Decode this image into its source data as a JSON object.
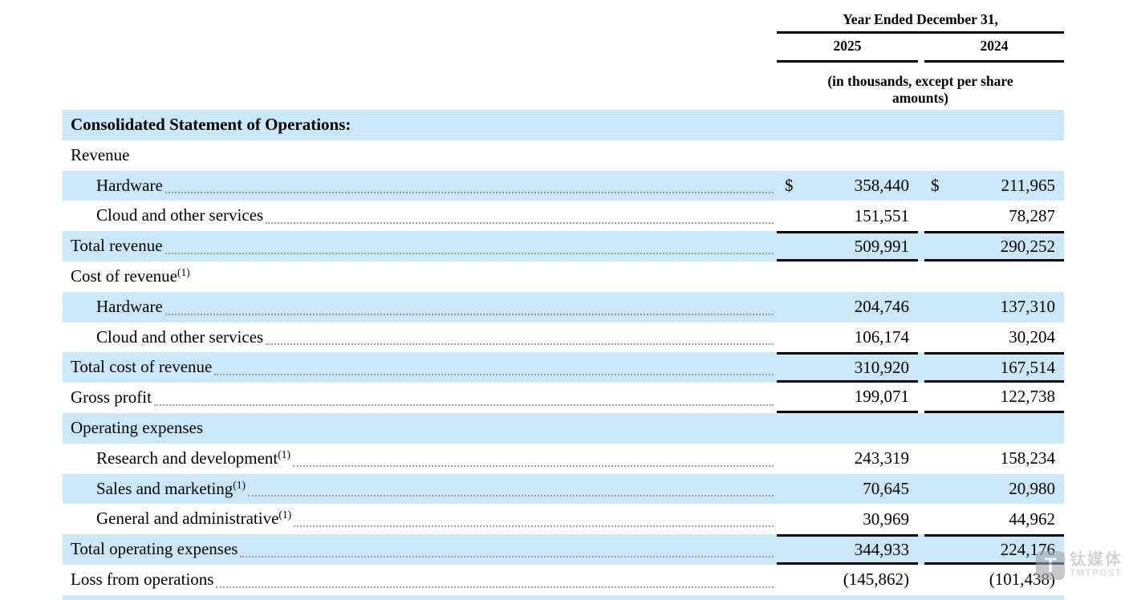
{
  "header": {
    "period_label": "Year Ended December 31,",
    "col_2025": "2025",
    "col_2024": "2024",
    "units_note": "(in thousands, except per share amounts)"
  },
  "table": {
    "rows": [
      {
        "label": "Consolidated Statement of Operations:"
      },
      {
        "label": "Revenue"
      },
      {
        "label": "Hardware",
        "d1": "$",
        "v1": "358,440",
        "d2": "$",
        "v2": "211,965"
      },
      {
        "label": "Cloud and other services",
        "v1": "151,551",
        "v2": "78,287"
      },
      {
        "label": "Total revenue",
        "v1": "509,991",
        "v2": "290,252"
      },
      {
        "label": "Cost of revenue",
        "sup": "(1)"
      },
      {
        "label": "Hardware",
        "v1": "204,746",
        "v2": "137,310"
      },
      {
        "label": "Cloud and other services",
        "v1": "106,174",
        "v2": "30,204"
      },
      {
        "label": "Total cost of revenue",
        "v1": "310,920",
        "v2": "167,514"
      },
      {
        "label": "Gross profit",
        "v1": "199,071",
        "v2": "122,738"
      },
      {
        "label": "Operating expenses"
      },
      {
        "label": "Research and development",
        "sup": "(1)",
        "v1": "243,319",
        "v2": "158,234"
      },
      {
        "label": "Sales and marketing",
        "sup": "(1)",
        "v1": "70,645",
        "v2": "20,980"
      },
      {
        "label": "General and administrative",
        "sup": "(1)",
        "v1": "30,969",
        "v2": "44,962"
      },
      {
        "label": "Total operating expenses",
        "v1": "344,933",
        "v2": "224,176"
      },
      {
        "label": "Loss from operations",
        "v1": "(145,862)",
        "v2": "(101,438)"
      }
    ]
  },
  "watermark": {
    "logo_letter": "T",
    "cn": "钛媒体",
    "en": "TMTPOST"
  },
  "colors": {
    "row_highlight": "#cbe7fa",
    "rule": "#000000",
    "leader_dots": "#9e9e9e"
  }
}
